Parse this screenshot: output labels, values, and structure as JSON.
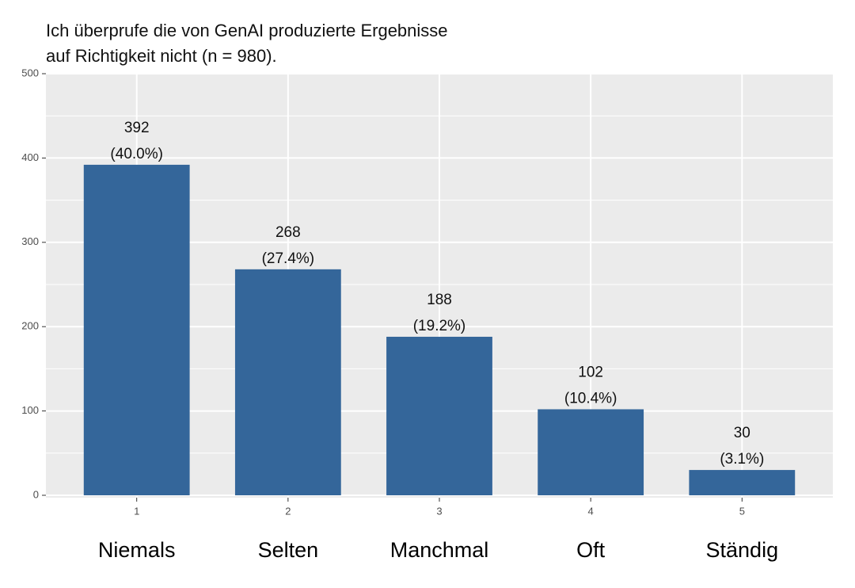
{
  "chart_data": {
    "type": "bar",
    "title": [
      "Ich überprufe die von GenAI produzierte Ergebnisse",
      "auf Richtigkeit nicht (n = 980)."
    ],
    "x": [
      1,
      2,
      3,
      4,
      5
    ],
    "labels": [
      "Niemals",
      "Selten",
      "Manchmal",
      "Oft",
      "Ständig"
    ],
    "values": [
      392,
      268,
      188,
      102,
      30
    ],
    "percent_labels": [
      "(40.0%)",
      "(27.4%)",
      "(19.2%)",
      "(10.4%)",
      "(3.1%)"
    ],
    "color": "#34669a",
    "xlim": [
      0.4,
      5.6
    ],
    "xticks": [
      1,
      2,
      3,
      4,
      5
    ],
    "ylim": [
      0,
      500
    ],
    "yticks": [
      0,
      100,
      200,
      300,
      400,
      500
    ],
    "minor_yticks": [
      50,
      150,
      250,
      350,
      450
    ],
    "grid": true
  }
}
